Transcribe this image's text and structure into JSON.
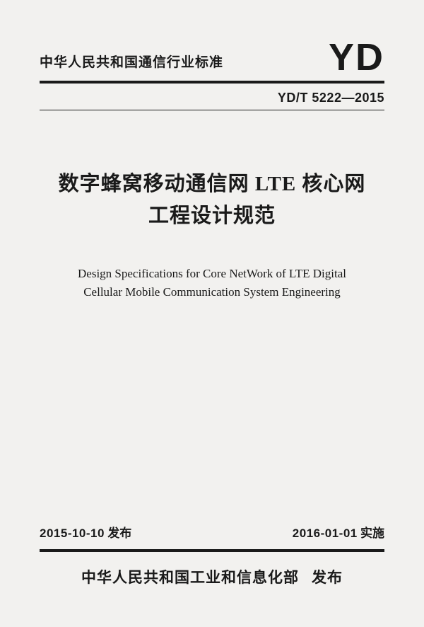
{
  "header": {
    "org_standard": "中华人民共和国通信行业标准",
    "logo": "YD",
    "code": "YD/T 5222—2015"
  },
  "title": {
    "cn_line1": "数字蜂窝移动通信网 LTE 核心网",
    "cn_line2": "工程设计规范",
    "en_line1": "Design Specifications for Core NetWork of LTE Digital",
    "en_line2": "Cellular Mobile Communication System Engineering"
  },
  "dates": {
    "issue_date": "2015-10-10",
    "issue_label": "发布",
    "effective_date": "2016-01-01",
    "effective_label": "实施"
  },
  "publisher": {
    "org": "中华人民共和国工业和信息化部",
    "action": "发布"
  },
  "style": {
    "page_bg": "#f2f1ef",
    "text_color": "#1a1a1a",
    "rule_color": "#1a1a1a"
  }
}
